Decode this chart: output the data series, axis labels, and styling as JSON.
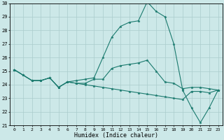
{
  "xlabel": "Humidex (Indice chaleur)",
  "x": [
    0,
    1,
    2,
    3,
    4,
    5,
    6,
    7,
    8,
    9,
    10,
    11,
    12,
    13,
    14,
    15,
    16,
    17,
    18,
    19,
    20,
    21,
    22,
    23
  ],
  "line1": [
    25.1,
    24.7,
    24.3,
    24.3,
    24.5,
    23.8,
    24.2,
    24.3,
    24.4,
    24.5,
    26.0,
    27.5,
    28.3,
    28.6,
    28.7,
    30.1,
    29.4,
    29.0,
    27.0,
    23.6,
    22.3,
    21.2,
    22.3,
    23.6
  ],
  "line2": [
    25.1,
    24.7,
    24.3,
    24.3,
    24.5,
    23.8,
    24.2,
    24.1,
    24.1,
    24.4,
    24.4,
    25.2,
    25.4,
    25.5,
    25.6,
    25.8,
    25.0,
    24.2,
    24.1,
    23.7,
    23.8,
    23.8,
    23.7,
    23.6
  ],
  "line3": [
    25.1,
    24.7,
    24.3,
    24.3,
    24.5,
    23.8,
    24.2,
    24.1,
    24.0,
    23.9,
    23.8,
    23.7,
    23.6,
    23.5,
    23.4,
    23.3,
    23.2,
    23.1,
    23.0,
    22.9,
    23.5,
    23.5,
    23.4,
    23.6
  ],
  "line_color": "#1a7a6e",
  "bg_color": "#cce8e8",
  "grid_color": "#aacccc",
  "ylim": [
    21,
    30
  ],
  "yticks": [
    21,
    22,
    23,
    24,
    25,
    26,
    27,
    28,
    29,
    30
  ]
}
